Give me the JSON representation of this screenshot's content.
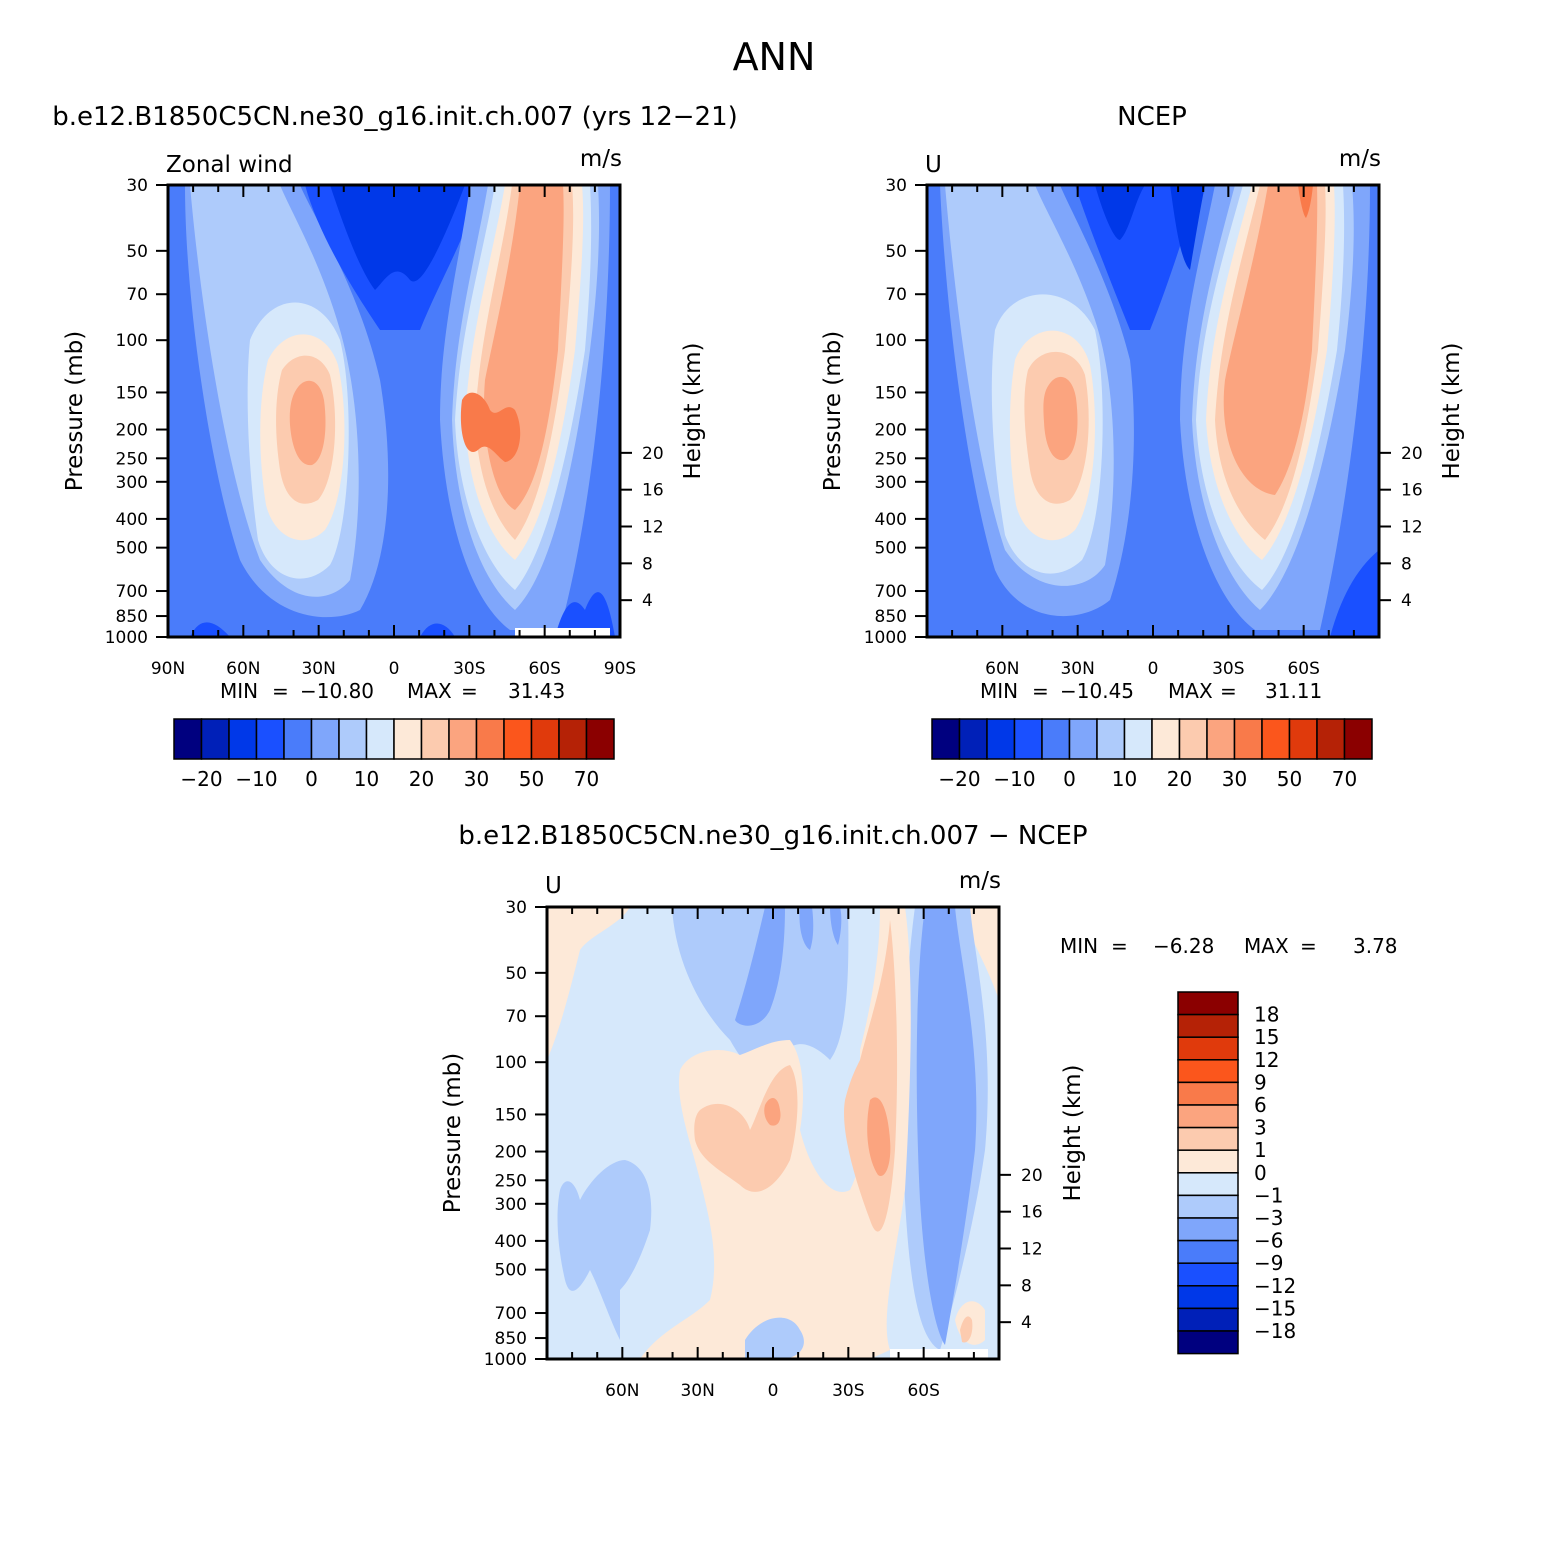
{
  "figure": {
    "title": "ANN"
  },
  "colorbar_colors": [
    "#00007f",
    "#0020b8",
    "#0038e8",
    "#1a50ff",
    "#4a7cfa",
    "#7fa6fb",
    "#aecbfb",
    "#d6e8fb",
    "#fde9d8",
    "#fccbaf",
    "#fba47f",
    "#f97a4a",
    "#fb561c",
    "#e03a0c",
    "#b52206",
    "#8b0000"
  ],
  "chart_data": [
    {
      "type": "heatmap",
      "title": "b.e12.B1850C5CN.ne30_g16.init.ch.007 (yrs 12−21)",
      "left_label": "Zonal wind",
      "units": "m/s",
      "ylabel": "Pressure (mb)",
      "y2label": "Height (km)",
      "x_ticks": [
        "90N",
        "60N",
        "30N",
        "0",
        "30S",
        "60S",
        "90S"
      ],
      "y_ticks": [
        30,
        50,
        70,
        100,
        150,
        200,
        250,
        300,
        400,
        500,
        700,
        850,
        1000
      ],
      "y2_ticks": [
        20,
        16,
        12,
        8,
        4
      ],
      "ylim": [
        1000,
        30
      ],
      "stats": {
        "min_label": "MIN",
        "min": "−10.80",
        "max_label": "MAX",
        "max": "31.43"
      },
      "colorbar_labels": [
        "−20",
        "−10",
        "0",
        "10",
        "20",
        "30",
        "50",
        "70"
      ]
    },
    {
      "type": "heatmap",
      "title": "NCEP",
      "left_label": "U",
      "units": "m/s",
      "ylabel": "Pressure (mb)",
      "y2label": "Height (km)",
      "x_ticks": [
        "60N",
        "30N",
        "0",
        "30S",
        "60S"
      ],
      "y_ticks": [
        30,
        50,
        70,
        100,
        150,
        200,
        250,
        300,
        400,
        500,
        700,
        850,
        1000
      ],
      "y2_ticks": [
        20,
        16,
        12,
        8,
        4
      ],
      "ylim": [
        1000,
        30
      ],
      "stats": {
        "min_label": "MIN",
        "min": "−10.45",
        "max_label": "MAX",
        "max": "31.11"
      },
      "colorbar_labels": [
        "−20",
        "−10",
        "0",
        "10",
        "20",
        "30",
        "50",
        "70"
      ]
    },
    {
      "type": "heatmap",
      "title": "b.e12.B1850C5CN.ne30_g16.init.ch.007 − NCEP",
      "left_label": "U",
      "units": "m/s",
      "ylabel": "Pressure (mb)",
      "y2label": "Height (km)",
      "x_ticks": [
        "60N",
        "30N",
        "0",
        "30S",
        "60S"
      ],
      "y_ticks": [
        30,
        50,
        70,
        100,
        150,
        200,
        250,
        300,
        400,
        500,
        700,
        850,
        1000
      ],
      "y2_ticks": [
        20,
        16,
        12,
        8,
        4
      ],
      "ylim": [
        1000,
        30
      ],
      "stats": {
        "min_label": "MIN",
        "min": "−6.28",
        "max_label": "MAX",
        "max": "3.78"
      },
      "colorbar_labels": [
        "18",
        "15",
        "12",
        "9",
        "6",
        "3",
        "1",
        "0",
        "−1",
        "−3",
        "−6",
        "−9",
        "−12",
        "−15",
        "−18"
      ]
    }
  ]
}
